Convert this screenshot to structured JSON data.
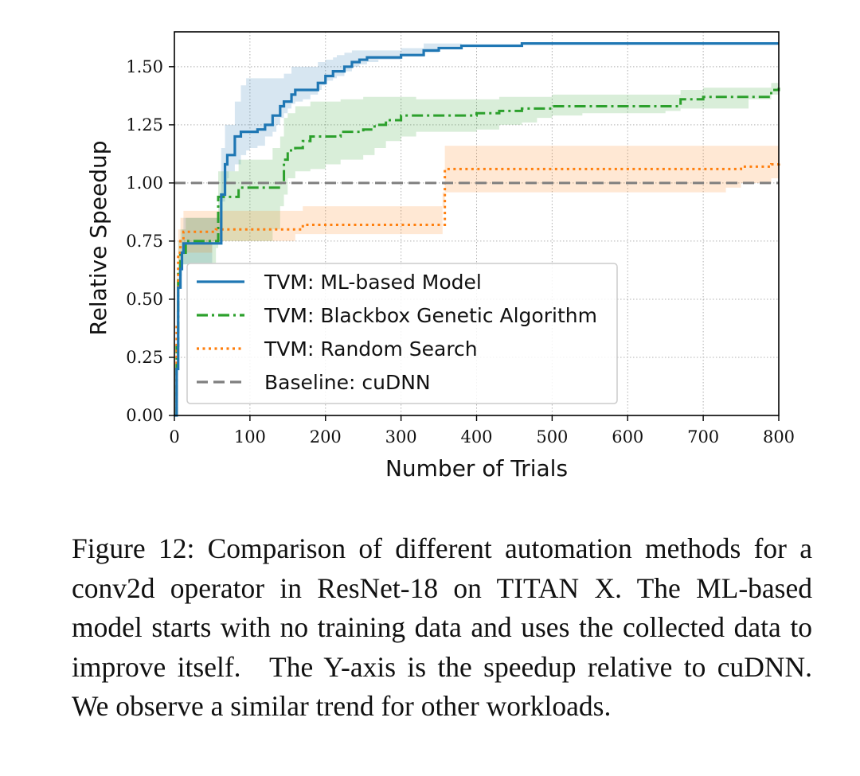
{
  "chart_data": {
    "type": "line",
    "xlabel": "Number of Trials",
    "ylabel": "Relative Speedup",
    "xlim": [
      0,
      800
    ],
    "ylim": [
      0,
      1.65
    ],
    "xticks": [
      0,
      100,
      200,
      300,
      400,
      500,
      600,
      700,
      800
    ],
    "yticks": [
      0.0,
      0.25,
      0.5,
      0.75,
      1.0,
      1.25,
      1.5
    ],
    "ytick_labels": [
      "0.00",
      "0.25",
      "0.50",
      "0.75",
      "1.00",
      "1.25",
      "1.50"
    ],
    "grid": true,
    "legend_position": "lower-left",
    "series": [
      {
        "name": "TVM: ML-based Model",
        "color": "#1f77b4",
        "style": "solid",
        "x": [
          0,
          3,
          5,
          8,
          10,
          12,
          50,
          62,
          67,
          70,
          72,
          80,
          88,
          95,
          100,
          110,
          120,
          130,
          135,
          140,
          145,
          150,
          155,
          160,
          170,
          180,
          190,
          195,
          200,
          210,
          215,
          225,
          235,
          245,
          255,
          270,
          300,
          330,
          350,
          380,
          460,
          800
        ],
        "y": [
          0.0,
          0.2,
          0.55,
          0.63,
          0.7,
          0.74,
          0.74,
          0.95,
          1.08,
          1.12,
          1.12,
          1.2,
          1.22,
          1.22,
          1.22,
          1.23,
          1.25,
          1.29,
          1.29,
          1.33,
          1.35,
          1.35,
          1.38,
          1.4,
          1.4,
          1.4,
          1.43,
          1.43,
          1.46,
          1.48,
          1.48,
          1.5,
          1.52,
          1.53,
          1.54,
          1.54,
          1.55,
          1.57,
          1.58,
          1.59,
          1.6,
          1.6
        ],
        "band_lower": [
          0.0,
          0.1,
          0.45,
          0.55,
          0.6,
          0.65,
          0.65,
          0.75,
          0.92,
          1.0,
          1.02,
          1.05,
          1.08,
          1.12,
          1.14,
          1.15,
          1.16,
          1.2,
          1.22,
          1.25,
          1.28,
          1.3,
          1.32,
          1.34,
          1.35,
          1.36,
          1.38,
          1.4,
          1.42,
          1.44,
          1.45,
          1.46,
          1.48,
          1.5,
          1.51,
          1.52,
          1.53,
          1.55,
          1.56,
          1.58,
          1.6,
          1.6
        ],
        "band_upper": [
          0.0,
          0.3,
          0.65,
          0.7,
          0.8,
          0.85,
          0.85,
          1.15,
          1.25,
          1.25,
          1.25,
          1.35,
          1.42,
          1.45,
          1.45,
          1.45,
          1.45,
          1.45,
          1.45,
          1.45,
          1.47,
          1.47,
          1.5,
          1.5,
          1.5,
          1.5,
          1.52,
          1.52,
          1.53,
          1.54,
          1.55,
          1.56,
          1.57,
          1.57,
          1.57,
          1.57,
          1.58,
          1.6,
          1.6,
          1.6,
          1.6,
          1.6
        ]
      },
      {
        "name": "TVM: Blackbox Genetic Algorithm",
        "color": "#2ca02c",
        "style": "dashdot",
        "x": [
          0,
          3,
          5,
          8,
          15,
          55,
          58,
          85,
          130,
          140,
          145,
          150,
          160,
          170,
          180,
          200,
          220,
          250,
          265,
          280,
          300,
          320,
          400,
          430,
          460,
          480,
          500,
          540,
          560,
          650,
          670,
          690,
          700,
          760,
          790,
          800
        ],
        "y": [
          0.0,
          0.3,
          0.62,
          0.7,
          0.75,
          0.75,
          0.94,
          0.98,
          0.98,
          1.0,
          1.1,
          1.14,
          1.15,
          1.18,
          1.2,
          1.2,
          1.22,
          1.23,
          1.25,
          1.27,
          1.29,
          1.29,
          1.3,
          1.31,
          1.32,
          1.32,
          1.33,
          1.33,
          1.33,
          1.33,
          1.36,
          1.36,
          1.37,
          1.37,
          1.4,
          1.41
        ],
        "band_lower": [
          0.0,
          0.2,
          0.5,
          0.6,
          0.65,
          0.65,
          0.72,
          0.75,
          0.75,
          0.8,
          0.9,
          0.95,
          1.02,
          1.05,
          1.05,
          1.06,
          1.08,
          1.1,
          1.12,
          1.15,
          1.18,
          1.2,
          1.22,
          1.23,
          1.25,
          1.26,
          1.28,
          1.29,
          1.3,
          1.3,
          1.31,
          1.32,
          1.32,
          1.32,
          1.36,
          1.38
        ],
        "band_upper": [
          0.0,
          0.4,
          0.75,
          0.8,
          0.85,
          0.85,
          1.05,
          1.1,
          1.15,
          1.2,
          1.28,
          1.3,
          1.33,
          1.33,
          1.35,
          1.35,
          1.36,
          1.37,
          1.37,
          1.37,
          1.37,
          1.36,
          1.36,
          1.37,
          1.37,
          1.37,
          1.38,
          1.38,
          1.38,
          1.38,
          1.4,
          1.4,
          1.41,
          1.41,
          1.43,
          1.44
        ]
      },
      {
        "name": "TVM: Random Search",
        "color": "#ff7f0e",
        "style": "dotted",
        "x": [
          0,
          3,
          5,
          8,
          12,
          50,
          55,
          160,
          170,
          355,
          358,
          730,
          750,
          790,
          800
        ],
        "y": [
          0.0,
          0.4,
          0.7,
          0.75,
          0.79,
          0.79,
          0.8,
          0.8,
          0.82,
          0.82,
          1.06,
          1.06,
          1.07,
          1.08,
          1.09
        ],
        "band_lower": [
          0.0,
          0.3,
          0.6,
          0.65,
          0.7,
          0.7,
          0.75,
          0.75,
          0.78,
          0.78,
          0.96,
          0.96,
          0.98,
          1.0,
          1.02
        ],
        "band_upper": [
          0.0,
          0.5,
          0.8,
          0.85,
          0.88,
          0.88,
          0.88,
          0.88,
          0.9,
          0.9,
          1.16,
          1.16,
          1.16,
          1.16,
          1.16
        ]
      },
      {
        "name": "Baseline: cuDNN",
        "color": "#7f7f7f",
        "style": "dashed",
        "x": [
          0,
          800
        ],
        "y": [
          1.0,
          1.0
        ]
      }
    ]
  },
  "caption": "Figure 12: Comparison of different automation methods for a conv2d operator in ResNet-18 on TITAN X. The ML-based model starts with no training data and uses the collected data to improve itself. The Y-axis is the speedup relative to cuDNN. We observe a similar trend for other workloads."
}
